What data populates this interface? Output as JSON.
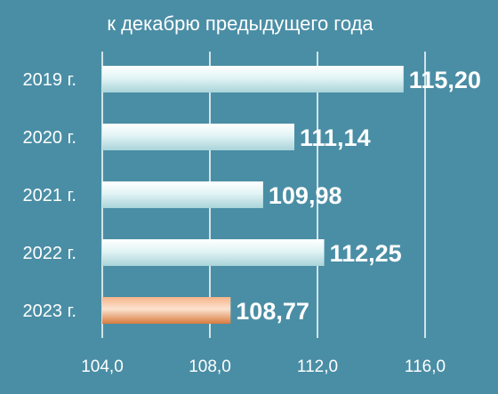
{
  "chart_data": {
    "type": "bar",
    "orientation": "horizontal",
    "title": "к декабрю предыдущего года",
    "categories": [
      "2019 г.",
      "2020 г.",
      "2021 г.",
      "2022 г.",
      "2023 г."
    ],
    "values": [
      115.2,
      111.14,
      109.98,
      112.25,
      108.77
    ],
    "value_labels": [
      "115,20",
      "111,14",
      "109,98",
      "112,25",
      "108,77"
    ],
    "xlim": [
      104.0,
      116.0
    ],
    "xticks": [
      104.0,
      108.0,
      112.0,
      116.0
    ],
    "xtick_labels": [
      "104,0",
      "108,0",
      "112,0",
      "116,0"
    ],
    "grid": true,
    "highlight_index": 4,
    "colors": {
      "background": "#4a8ea5",
      "bar": "#d8f0f2",
      "highlight_bar": "#e8905a",
      "text": "#ffffff"
    }
  }
}
